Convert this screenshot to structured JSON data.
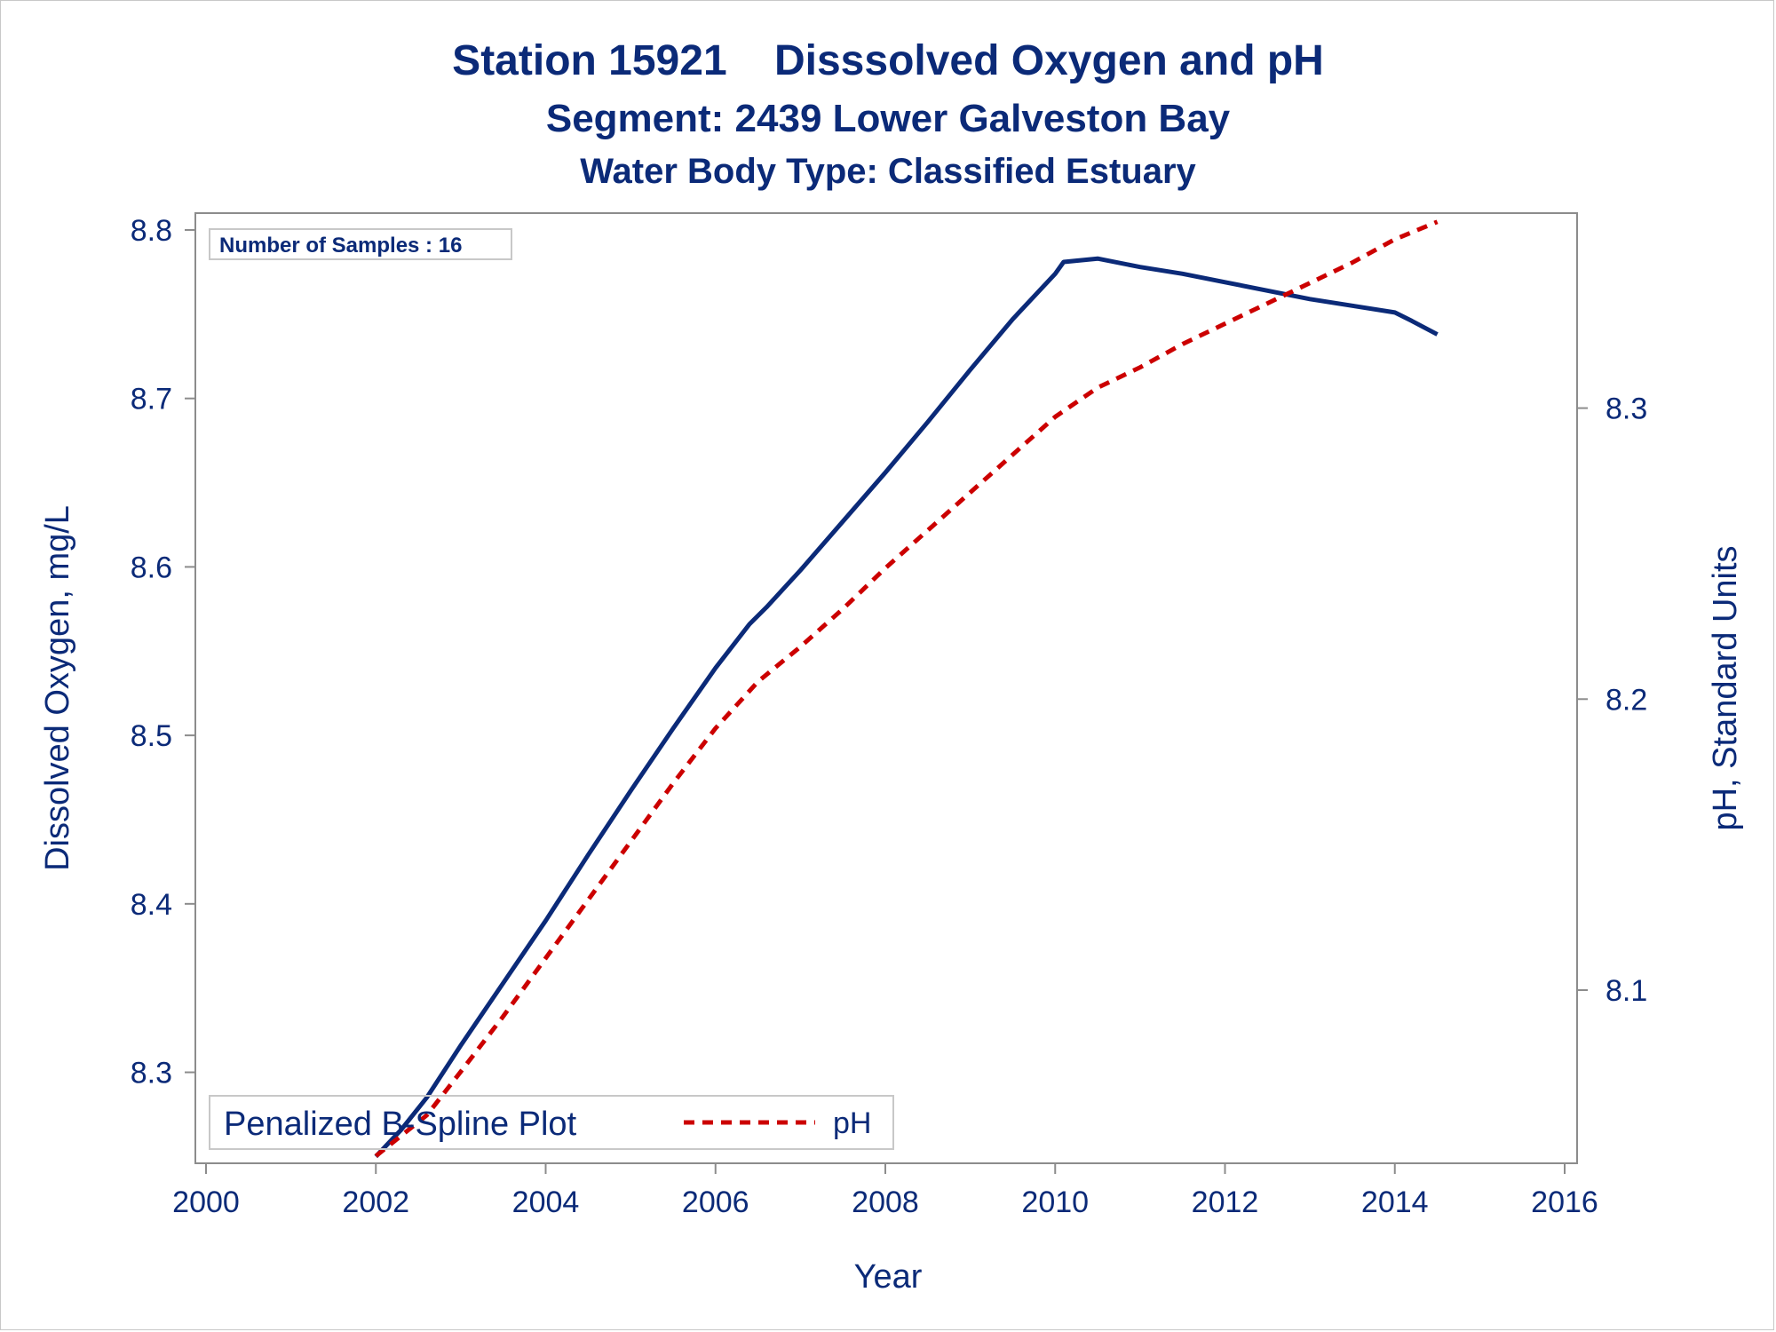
{
  "titles": {
    "line1": "Station 15921    Disssolved Oxygen and pH",
    "line2": "Segment: 2439  Lower Galveston Bay",
    "line3": "Water Body Type: Classified Estuary"
  },
  "inset": {
    "text": "Number of Samples : 16"
  },
  "legend": {
    "title": "Penalized B-Spline Plot",
    "entries": [
      {
        "label": "pH"
      }
    ]
  },
  "colors": {
    "do_line": "#0b2a78",
    "ph_line": "#cc0000",
    "text": "#0b2a78",
    "axis": "#8c8c8c"
  },
  "chart_data": {
    "type": "line",
    "xlabel": "Year",
    "ylabel": "Dissolved Oxygen, mg/L",
    "y2label": "pH, Standard Units",
    "xlim": [
      2000,
      2016
    ],
    "xticks": [
      "2000",
      "2002",
      "2004",
      "2006",
      "2008",
      "2010",
      "2012",
      "2014",
      "2016"
    ],
    "ylim": [
      8.246,
      8.81
    ],
    "yticks": [
      "8.3",
      "8.4",
      "8.5",
      "8.6",
      "8.7",
      "8.8"
    ],
    "y2lim": [
      8.0405,
      8.367
    ],
    "y2ticks": [
      "8.1",
      "8.2",
      "8.3"
    ],
    "grid": false,
    "legend_position": "bottom-left",
    "series": [
      {
        "axis": "left",
        "x": [
          2002.0,
          2002.3,
          2002.6,
          2003.0,
          2003.5,
          2004.0,
          2004.5,
          2005.0,
          2005.5,
          2006.0,
          2006.4,
          2006.6,
          2007.0,
          2007.5,
          2008.0,
          2008.5,
          2009.0,
          2009.5,
          2010.0,
          2010.1,
          2010.3,
          2010.5,
          2011.0,
          2011.5,
          2012.0,
          2012.5,
          2013.0,
          2013.5,
          2014.0,
          2014.2,
          2014.5
        ],
        "y": [
          8.25,
          8.266,
          8.285,
          8.316,
          8.353,
          8.39,
          8.429,
          8.467,
          8.504,
          8.54,
          8.566,
          8.576,
          8.598,
          8.627,
          8.656,
          8.686,
          8.717,
          8.747,
          8.774,
          8.781,
          8.782,
          8.783,
          8.778,
          8.774,
          8.769,
          8.764,
          8.759,
          8.755,
          8.751,
          8.746,
          8.738
        ]
      },
      {
        "axis": "right",
        "x": [
          2002.0,
          2002.3,
          2002.6,
          2003.0,
          2003.5,
          2004.0,
          2004.5,
          2005.0,
          2005.5,
          2006.0,
          2006.5,
          2007.0,
          2007.5,
          2008.0,
          2008.5,
          2009.0,
          2009.5,
          2010.0,
          2010.3,
          2010.5,
          2011.0,
          2011.5,
          2012.0,
          2012.5,
          2013.0,
          2013.5,
          2014.0,
          2014.5
        ],
        "y": [
          8.043,
          8.05,
          8.057,
          8.072,
          8.091,
          8.111,
          8.131,
          8.151,
          8.171,
          8.19,
          8.206,
          8.218,
          8.231,
          8.245,
          8.258,
          8.271,
          8.284,
          8.297,
          8.303,
          8.307,
          8.314,
          8.322,
          8.329,
          8.336,
          8.343,
          8.35,
          8.358,
          8.364
        ]
      }
    ]
  }
}
